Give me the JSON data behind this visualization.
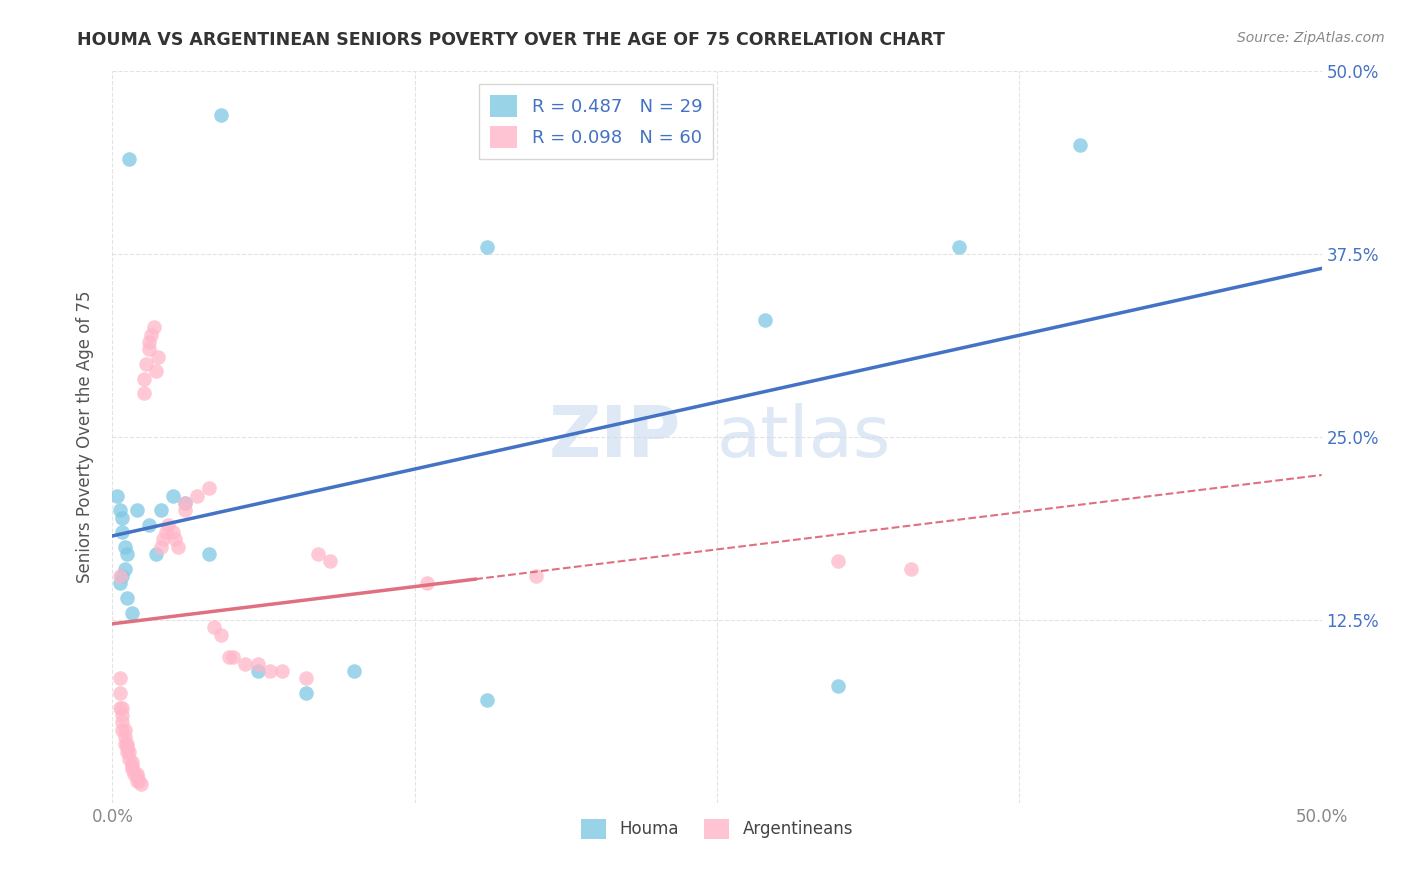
{
  "title": "HOUMA VS ARGENTINEAN SENIORS POVERTY OVER THE AGE OF 75 CORRELATION CHART",
  "source": "Source: ZipAtlas.com",
  "ylabel": "Seniors Poverty Over the Age of 75",
  "xlabel": "",
  "xlim": [
    0,
    0.5
  ],
  "ylim": [
    0,
    0.5
  ],
  "xticks": [
    0.0,
    0.125,
    0.25,
    0.375,
    0.5
  ],
  "yticks": [
    0.0,
    0.125,
    0.25,
    0.375,
    0.5
  ],
  "houma_color": "#7ec8e3",
  "argentinean_color": "#ffb6c8",
  "houma_R": 0.487,
  "houma_N": 29,
  "argentinean_R": 0.098,
  "argentinean_N": 60,
  "legend_label_houma": "R = 0.487   N = 29",
  "legend_label_argentinean": "R = 0.098   N = 60",
  "bottom_legend_houma": "Houma",
  "bottom_legend_argentinean": "Argentineans",
  "watermark_zip": "ZIP",
  "watermark_atlas": "atlas",
  "background_color": "#ffffff",
  "grid_color": "#e0e0e0",
  "houma_line_color": "#4472c4",
  "argentinean_line_color": "#e07080",
  "right_axis_color": "#4472c4",
  "houma_x": [
    0.007,
    0.045,
    0.002,
    0.003,
    0.004,
    0.004,
    0.005,
    0.006,
    0.005,
    0.004,
    0.003,
    0.006,
    0.008,
    0.01,
    0.015,
    0.02,
    0.025,
    0.03,
    0.018,
    0.04,
    0.06,
    0.08,
    0.1,
    0.155,
    0.27,
    0.35,
    0.4,
    0.155,
    0.3
  ],
  "houma_y": [
    0.44,
    0.47,
    0.21,
    0.2,
    0.195,
    0.185,
    0.175,
    0.17,
    0.16,
    0.155,
    0.15,
    0.14,
    0.13,
    0.2,
    0.19,
    0.2,
    0.21,
    0.205,
    0.17,
    0.17,
    0.09,
    0.075,
    0.09,
    0.38,
    0.33,
    0.38,
    0.45,
    0.07,
    0.08
  ],
  "argentinean_x": [
    0.003,
    0.003,
    0.003,
    0.003,
    0.004,
    0.004,
    0.004,
    0.004,
    0.005,
    0.005,
    0.005,
    0.006,
    0.006,
    0.006,
    0.007,
    0.007,
    0.008,
    0.008,
    0.008,
    0.009,
    0.01,
    0.01,
    0.01,
    0.011,
    0.012,
    0.013,
    0.013,
    0.014,
    0.015,
    0.015,
    0.016,
    0.017,
    0.018,
    0.019,
    0.02,
    0.021,
    0.022,
    0.023,
    0.025,
    0.026,
    0.027,
    0.03,
    0.03,
    0.035,
    0.04,
    0.042,
    0.045,
    0.048,
    0.05,
    0.055,
    0.06,
    0.065,
    0.07,
    0.08,
    0.085,
    0.09,
    0.13,
    0.175,
    0.3,
    0.33
  ],
  "argentinean_y": [
    0.155,
    0.085,
    0.075,
    0.065,
    0.065,
    0.06,
    0.055,
    0.05,
    0.05,
    0.045,
    0.04,
    0.04,
    0.038,
    0.035,
    0.035,
    0.03,
    0.028,
    0.025,
    0.023,
    0.02,
    0.02,
    0.018,
    0.015,
    0.015,
    0.013,
    0.28,
    0.29,
    0.3,
    0.31,
    0.315,
    0.32,
    0.325,
    0.295,
    0.305,
    0.175,
    0.18,
    0.185,
    0.19,
    0.185,
    0.18,
    0.175,
    0.2,
    0.205,
    0.21,
    0.215,
    0.12,
    0.115,
    0.1,
    0.1,
    0.095,
    0.095,
    0.09,
    0.09,
    0.085,
    0.17,
    0.165,
    0.15,
    0.155,
    0.165,
    0.16
  ]
}
